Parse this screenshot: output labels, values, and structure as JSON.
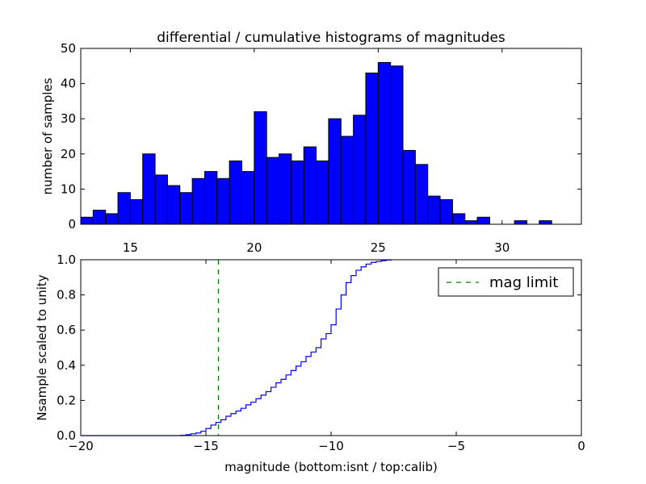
{
  "chart_data": [
    {
      "type": "bar",
      "title": "differential / cumulative histograms of magnitudes",
      "xlabel": "",
      "ylabel": "number of samples",
      "xlim": [
        13.0,
        33.2
      ],
      "ylim": [
        0,
        50
      ],
      "xticks": [
        "15",
        "20",
        "25",
        "30"
      ],
      "yticks": [
        "0",
        "10",
        "20",
        "30",
        "40",
        "50"
      ],
      "bin_start": 13.0,
      "bin_width": 0.5,
      "values": [
        2,
        4,
        3,
        9,
        7,
        20,
        14,
        11,
        9,
        13,
        15,
        13,
        18,
        15,
        32,
        19,
        20,
        18,
        22,
        18,
        30,
        25,
        31,
        43,
        46,
        45,
        21,
        17,
        8,
        7,
        3,
        1,
        2,
        0,
        0,
        1,
        0,
        1,
        0,
        0
      ],
      "bar_color": "#0000ff"
    },
    {
      "type": "line",
      "title": "",
      "xlabel": "magnitude (bottom:isnt / top:calib)",
      "ylabel": "Nsample scaled to unity",
      "xlim": [
        -20,
        0
      ],
      "ylim": [
        0.0,
        1.0
      ],
      "xticks": [
        "−20",
        "−15",
        "−10",
        "−5",
        "0"
      ],
      "yticks": [
        "0.0",
        "0.2",
        "0.4",
        "0.6",
        "0.8",
        "1.0"
      ],
      "series": [
        {
          "line_color": "#0000ff",
          "x": [
            -20.0,
            -16.0,
            -15.8,
            -15.6,
            -15.4,
            -15.2,
            -15.0,
            -14.8,
            -14.6,
            -14.4,
            -14.2,
            -14.0,
            -13.8,
            -13.6,
            -13.4,
            -13.2,
            -13.0,
            -12.8,
            -12.6,
            -12.4,
            -12.2,
            -12.0,
            -11.8,
            -11.6,
            -11.4,
            -11.2,
            -11.0,
            -10.8,
            -10.6,
            -10.4,
            -10.2,
            -10.0,
            -9.8,
            -9.6,
            -9.4,
            -9.2,
            -9.0,
            -8.8,
            -8.6,
            -8.4,
            -8.2,
            -8.0,
            -7.8,
            -7.6
          ],
          "y": [
            0.0,
            0.002,
            0.005,
            0.01,
            0.015,
            0.025,
            0.04,
            0.06,
            0.075,
            0.09,
            0.11,
            0.125,
            0.14,
            0.155,
            0.175,
            0.19,
            0.21,
            0.23,
            0.25,
            0.275,
            0.3,
            0.32,
            0.345,
            0.37,
            0.395,
            0.42,
            0.45,
            0.475,
            0.5,
            0.55,
            0.58,
            0.63,
            0.72,
            0.8,
            0.87,
            0.91,
            0.94,
            0.96,
            0.975,
            0.985,
            0.99,
            0.995,
            0.998,
            1.0
          ]
        }
      ],
      "vline": {
        "x": -14.5,
        "color": "#008000",
        "style": "dashed"
      },
      "legend": {
        "placement": "top-right",
        "entries": [
          "mag limit"
        ]
      }
    }
  ]
}
